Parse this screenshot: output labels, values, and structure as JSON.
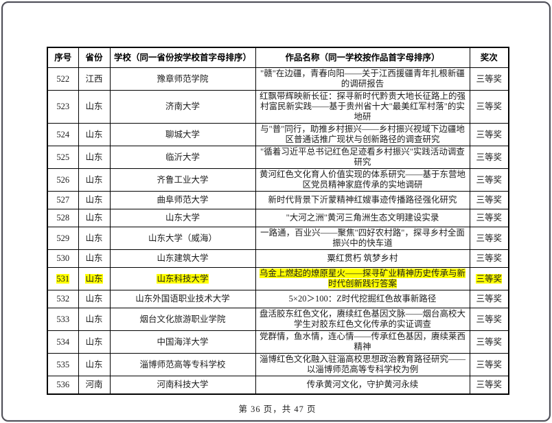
{
  "page": {
    "footer": "第 36 页，共 47 页",
    "highlight_color": "#ffff00"
  },
  "table": {
    "headers": [
      "序号",
      "省份",
      "学校（同一省份按学校首字母排序）",
      "作品名称（同一学校按作品首字母排序）",
      "奖次"
    ],
    "rows": [
      {
        "no": "522",
        "province": "江西",
        "school": "豫章师范学院",
        "work": "\"赣\"在边疆，青春向阳——关于江西援疆青年扎根新疆的调研报告",
        "award": "三等奖",
        "highlighted": false
      },
      {
        "no": "523",
        "province": "山东",
        "school": "济南大学",
        "work": "红飘带辉映新长征：探寻新时代黔贵大地长征路上的强村富民新实践——基于贵州省十大\"最美红军村落\"的实地研",
        "award": "三等奖",
        "highlighted": false
      },
      {
        "no": "524",
        "province": "山东",
        "school": "聊城大学",
        "work": "与\"普\"同行，助推乡村振兴——乡村振兴视域下边疆地区普通话推广现状与创新路径的调查研究",
        "award": "三等奖",
        "highlighted": false
      },
      {
        "no": "525",
        "province": "山东",
        "school": "临沂大学",
        "work": "\"循着习近平总书记红色足迹看乡村振兴\"实践活动调查研究",
        "award": "三等奖",
        "highlighted": false
      },
      {
        "no": "526",
        "province": "山东",
        "school": "齐鲁工业大学",
        "work": "黄河红色文化育人价值实现的体系研究——基于东营地区党员精神家庭传承的实地调研",
        "award": "三等奖",
        "highlighted": false
      },
      {
        "no": "527",
        "province": "山东",
        "school": "曲阜师范大学",
        "work": "新时代背景下沂蒙精神红嫂事迹传播路径强化研究",
        "award": "三等奖",
        "highlighted": false
      },
      {
        "no": "528",
        "province": "山东",
        "school": "山东大学",
        "work": "\"大河之洲\"黄河三角洲生态文明建设实录",
        "award": "三等奖",
        "highlighted": false
      },
      {
        "no": "529",
        "province": "山东",
        "school": "山东大学（威海）",
        "work": "一路通，百业兴——聚焦\"四好农村路\"，探寻乡村全面振兴中的快车道",
        "award": "三等奖",
        "highlighted": false
      },
      {
        "no": "530",
        "province": "山东",
        "school": "山东建筑大学",
        "work": "粟红贯朽 筑梦乡村",
        "award": "三等奖",
        "highlighted": false
      },
      {
        "no": "531",
        "province": "山东",
        "school": "山东科技大学",
        "work": "乌金上燃起的燎原星火——探寻矿业精神历史传承与新时代创新践行答案",
        "award": "三等奖",
        "highlighted": true
      },
      {
        "no": "532",
        "province": "山东",
        "school": "山东外国语职业技术大学",
        "work": "5×20＞100：Z时代挖掘红色故事新路径",
        "award": "三等奖",
        "highlighted": false
      },
      {
        "no": "533",
        "province": "山东",
        "school": "烟台文化旅游职业学院",
        "work": "盘活胶东红色文化，赓续红色基因文脉——烟台高校大学生对胶东红色文化传承的实证调查",
        "award": "三等奖",
        "highlighted": false
      },
      {
        "no": "534",
        "province": "山东",
        "school": "中国海洋大学",
        "work": "党群情，鱼水情，连心情——传承红色基因，赓续莱西精神",
        "award": "三等奖",
        "highlighted": false
      },
      {
        "no": "535",
        "province": "山东",
        "school": "淄博师范高等专科学校",
        "work": "淄博红色文化融入驻淄高校思想政治教育路径研究——以淄博师范高等专科学校为例",
        "award": "三等奖",
        "highlighted": false
      },
      {
        "no": "536",
        "province": "河南",
        "school": "河南科技大学",
        "work": "传承黄河文化，守护黄河永续",
        "award": "三等奖",
        "highlighted": false
      }
    ]
  }
}
